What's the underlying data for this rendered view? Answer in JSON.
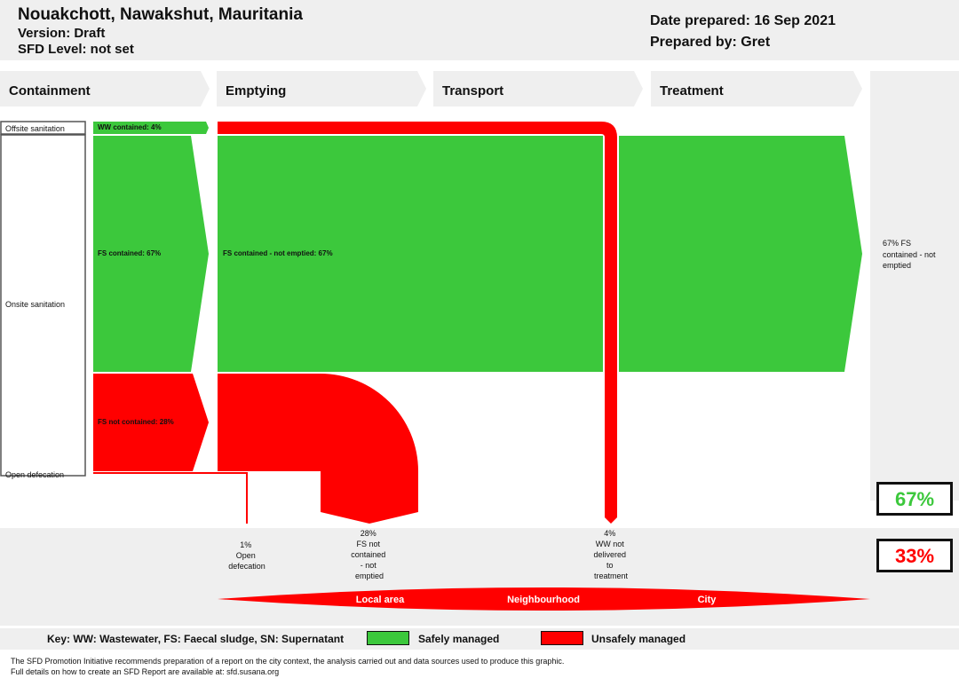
{
  "header": {
    "city": "Nouakchott, Nawakshut, Mauritania",
    "version": "Version: Draft",
    "sfd_level": "SFD Level: not set",
    "date_prepared": "Date prepared: 16 Sep 2021",
    "prepared_by": "Prepared by: Gret"
  },
  "stages": [
    "Containment",
    "Emptying",
    "Transport",
    "Treatment"
  ],
  "containment_labels": {
    "offsite": "Offsite sanitation",
    "onsite": "Onsite sanitation",
    "open_defecation": "Open defecation"
  },
  "flows": {
    "ww_contained": "WW contained: 4%",
    "fs_contained": "FS contained: 67%",
    "fs_not_contained": "FS not contained: 28%",
    "fs_contained_not_emptied": "FS contained - not emptied: 67%"
  },
  "outcome_label": [
    "67% FS",
    "contained - not",
    "emptied"
  ],
  "bottom_labels": {
    "open_def": [
      "1%",
      "Open",
      "defecation"
    ],
    "fs_not_contained": [
      "28%",
      "FS not",
      "contained",
      "- not",
      "emptied"
    ],
    "ww_not_delivered": [
      "4%",
      "WW not",
      "delivered",
      "to",
      "treatment"
    ]
  },
  "scale_labels": [
    "Local area",
    "Neighbourhood",
    "City"
  ],
  "percentages": {
    "safely_managed": "67%",
    "unsafely_managed": "33%"
  },
  "key": {
    "text": "Key: WW: Wastewater, FS: Faecal sludge, SN: Supernatant",
    "safe_label": "Safely managed",
    "unsafe_label": "Unsafely managed"
  },
  "colors": {
    "safe": "#3cc83c",
    "unsafe": "#ff0000",
    "band": "#efefef"
  },
  "footer": [
    "The SFD Promotion Initiative recommends preparation of a report on the city context, the analysis carried out and data sources used to produce this graphic.",
    "Full details on how to create an SFD Report are available at: sfd.susana.org"
  ]
}
